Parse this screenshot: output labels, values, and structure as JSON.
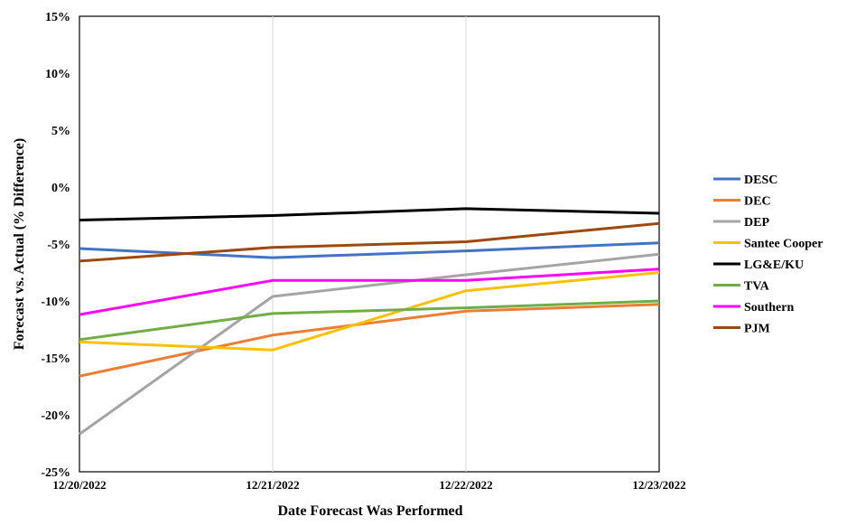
{
  "chart_data": {
    "type": "line",
    "title": "",
    "xlabel": "Date Forecast Was Performed",
    "ylabel": "Forecast vs. Actual (% Difference)",
    "x": [
      "12/20/2022",
      "12/21/2022",
      "12/22/2022",
      "12/23/2022"
    ],
    "ylim": [
      -25,
      15
    ],
    "ytick_values": [
      -25,
      -20,
      -15,
      -10,
      -5,
      0,
      5,
      10,
      15
    ],
    "ytick_labels": [
      "-25%",
      "-20%",
      "-15%",
      "-10%",
      "-5%",
      "0%",
      "5%",
      "10%",
      "15%"
    ],
    "grid": "vertical",
    "legend": "right",
    "series": [
      {
        "name": "DESC",
        "color": "#4472C4",
        "values": [
          -5.4,
          -6.2,
          -5.6,
          -4.9
        ]
      },
      {
        "name": "DEC",
        "color": "#ED7D31",
        "values": [
          -16.6,
          -13.0,
          -10.9,
          -10.3
        ]
      },
      {
        "name": "DEP",
        "color": "#A5A5A5",
        "values": [
          -21.7,
          -9.6,
          -7.7,
          -5.9
        ]
      },
      {
        "name": "Santee Cooper",
        "color": "#FFC000",
        "values": [
          -13.6,
          -14.3,
          -9.1,
          -7.5
        ]
      },
      {
        "name": "LG&E/KU",
        "color": "#000000",
        "values": [
          -2.9,
          -2.5,
          -1.9,
          -2.3
        ]
      },
      {
        "name": "TVA",
        "color": "#70AD47",
        "values": [
          -13.4,
          -11.1,
          -10.6,
          -10.0
        ]
      },
      {
        "name": "Southern",
        "color": "#FF00FF",
        "values": [
          -11.2,
          -8.2,
          -8.2,
          -7.2
        ]
      },
      {
        "name": "PJM",
        "color": "#9E480E",
        "values": [
          -6.5,
          -5.3,
          -4.8,
          -3.2
        ]
      }
    ]
  }
}
